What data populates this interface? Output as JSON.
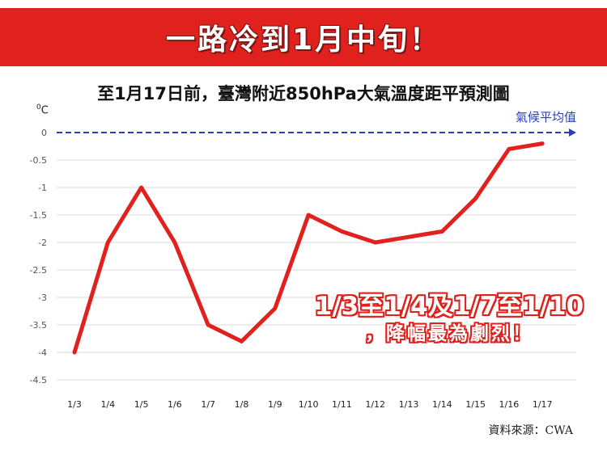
{
  "banner": {
    "text": "一路冷到1月中旬！"
  },
  "footer": {
    "source": "資料來源：CWA"
  },
  "colors": {
    "banner": "#e0211d",
    "line": "#e0211d",
    "baseline": "#2a3fbf",
    "grid": "#d9d9d9"
  },
  "chart_data": {
    "type": "line",
    "title": "至1月17日前，臺灣附近850hPa大氣溫度距平預測圖",
    "unit": "C",
    "unit_sup": "0",
    "categories": [
      "1/3",
      "1/4",
      "1/5",
      "1/6",
      "1/7",
      "1/8",
      "1/9",
      "1/10",
      "1/11",
      "1/12",
      "1/13",
      "1/14",
      "1/15",
      "1/16",
      "1/17"
    ],
    "series": [
      {
        "values": [
          -4,
          -2,
          -1,
          -2,
          -3.5,
          -3.8,
          -3.2,
          -1.5,
          -1.8,
          -2,
          -1.9,
          -1.8,
          -1.2,
          -0.3,
          -0.2
        ]
      }
    ],
    "ylim": [
      -4.5,
      0
    ],
    "yticks": [
      "0",
      "-0.5",
      "-1",
      "-1.5",
      "-2",
      "-2.5",
      "-3",
      "-3.5",
      "-4",
      "-4.5"
    ],
    "ytick_values": [
      0,
      -0.5,
      -1,
      -1.5,
      -2,
      -2.5,
      -3,
      -3.5,
      -4,
      -4.5
    ],
    "baseline": {
      "value": 0,
      "label": "氣候平均值",
      "style": "dashed"
    },
    "annotation": {
      "line1": "1/3至1/4及1/7至1/10",
      "line2": "，降幅最為劇烈！"
    },
    "grid": true
  }
}
